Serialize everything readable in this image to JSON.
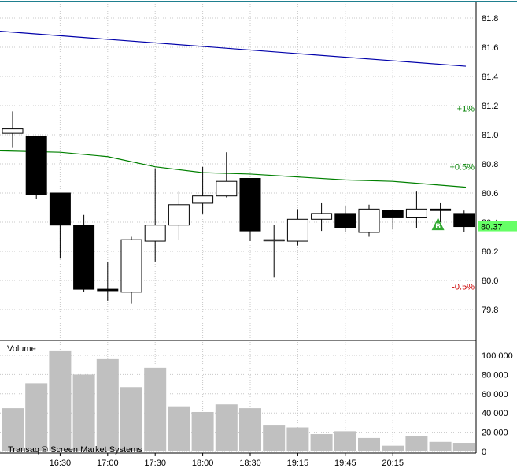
{
  "chart_data": [
    {
      "type": "candlestick",
      "interval": "15min",
      "ylim": [
        79.6,
        81.9
      ],
      "y_ticks": [
        "81.8",
        "81.6",
        "81.4",
        "81.2",
        "81.0",
        "80.8",
        "80.6",
        "80.4",
        "80.2",
        "80.0",
        "79.8"
      ],
      "x_ticks": [
        {
          "label": "16:30",
          "at": 2
        },
        {
          "label": "17:00",
          "at": 4
        },
        {
          "label": "17:30",
          "at": 6
        },
        {
          "label": "18:00",
          "at": 8
        },
        {
          "label": "18:30",
          "at": 10
        },
        {
          "label": "19:15",
          "at": 12
        },
        {
          "label": "19:45",
          "at": 14
        },
        {
          "label": "20:15",
          "at": 16
        }
      ],
      "candles": [
        {
          "o": 81.01,
          "h": 81.16,
          "l": 80.91,
          "c": 81.04
        },
        {
          "o": 80.99,
          "h": 80.99,
          "l": 80.56,
          "c": 80.59
        },
        {
          "o": 80.6,
          "h": 80.6,
          "l": 80.15,
          "c": 80.38
        },
        {
          "o": 80.38,
          "h": 80.45,
          "l": 79.92,
          "c": 79.94
        },
        {
          "o": 79.94,
          "h": 80.13,
          "l": 79.86,
          "c": 79.93
        },
        {
          "o": 79.92,
          "h": 80.3,
          "l": 79.84,
          "c": 80.28
        },
        {
          "o": 80.27,
          "h": 80.77,
          "l": 80.13,
          "c": 80.38
        },
        {
          "o": 80.38,
          "h": 80.61,
          "l": 80.28,
          "c": 80.52
        },
        {
          "o": 80.53,
          "h": 80.78,
          "l": 80.46,
          "c": 80.58
        },
        {
          "o": 80.58,
          "h": 80.88,
          "l": 80.57,
          "c": 80.68
        },
        {
          "o": 80.7,
          "h": 80.7,
          "l": 80.27,
          "c": 80.34
        },
        {
          "o": 80.28,
          "h": 80.38,
          "l": 80.02,
          "c": 80.28
        },
        {
          "o": 80.27,
          "h": 80.49,
          "l": 80.24,
          "c": 80.42
        },
        {
          "o": 80.42,
          "h": 80.53,
          "l": 80.34,
          "c": 80.46
        },
        {
          "o": 80.46,
          "h": 80.51,
          "l": 80.33,
          "c": 80.36
        },
        {
          "o": 80.33,
          "h": 80.52,
          "l": 80.3,
          "c": 80.49
        },
        {
          "o": 80.48,
          "h": 80.49,
          "l": 80.35,
          "c": 80.43
        },
        {
          "o": 80.43,
          "h": 80.61,
          "l": 80.36,
          "c": 80.49
        },
        {
          "o": 80.49,
          "h": 80.53,
          "l": 80.4,
          "c": 80.48
        },
        {
          "o": 80.46,
          "h": 80.48,
          "l": 80.33,
          "c": 80.37
        }
      ],
      "ma_lines": [
        {
          "color": "#0000aa",
          "x": [
            0,
            19
          ],
          "y": [
            81.71,
            81.47
          ]
        },
        {
          "color": "#008000",
          "x": [
            0,
            2,
            4,
            6,
            8,
            10,
            12,
            14,
            16,
            19
          ],
          "y": [
            80.89,
            80.88,
            80.85,
            80.78,
            80.74,
            80.73,
            80.71,
            80.69,
            80.68,
            80.64
          ]
        }
      ],
      "percent_labels": [
        {
          "text": "+1%",
          "y": 81.18,
          "color": "#008000"
        },
        {
          "text": "+0.5%",
          "y": 80.78,
          "color": "#008000"
        },
        {
          "text": "-0.5%",
          "y": 79.96,
          "color": "#cc0000"
        }
      ],
      "last_price": {
        "value": "80.37",
        "y": 80.37,
        "color": "#66ff66"
      },
      "marker": {
        "label": "B",
        "at": 18,
        "y": 80.41,
        "color": "#33aa33"
      }
    },
    {
      "type": "bar",
      "title": "Volume",
      "ylim": [
        0,
        110000
      ],
      "y_ticks": [
        "100 000",
        "80 000",
        "60 000",
        "40 000",
        "20 000",
        "0"
      ],
      "values": [
        45000,
        71000,
        105000,
        80000,
        96000,
        67000,
        87000,
        47000,
        41000,
        49000,
        45000,
        27000,
        25000,
        18000,
        21000,
        14000,
        6000,
        16000,
        10000,
        9000
      ],
      "color": "#c0c0c0"
    }
  ],
  "watermark": "Transaq ® Screen Market Systems"
}
